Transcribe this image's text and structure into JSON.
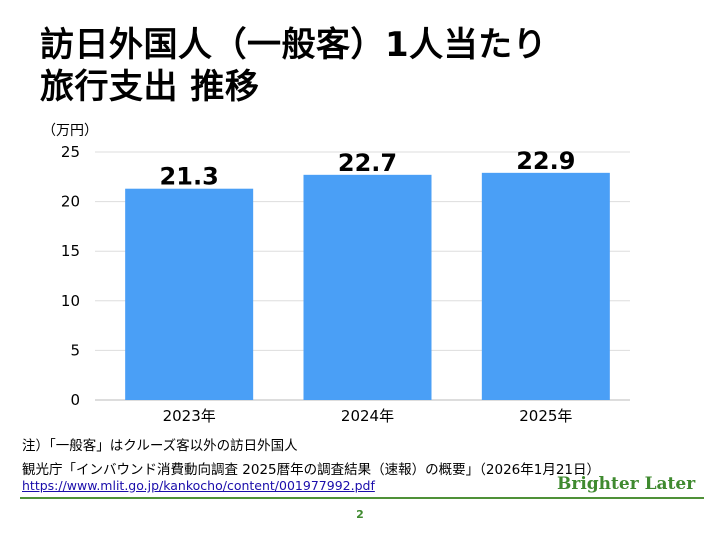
{
  "title_line1": "訪日外国人（一般客）1人当たり",
  "title_line2": "旅行支出 推移",
  "chart_data": {
    "type": "bar",
    "title": "訪日外国人（一般客）1人当たり 旅行支出 推移",
    "ylabel": "（万円）",
    "xlabel": "",
    "categories": [
      "2023年",
      "2024年",
      "2025年"
    ],
    "values": [
      21.3,
      22.7,
      22.9
    ],
    "data_labels": [
      "21.3",
      "22.7",
      "22.9"
    ],
    "ylim": [
      0,
      25
    ],
    "yticks": [
      "0",
      "5",
      "10",
      "15",
      "20",
      "25"
    ],
    "grid": true,
    "bar_color": "#4a9ff6"
  },
  "notes": {
    "note1": "注）「一般客」はクルーズ客以外の訪日外国人",
    "source": "観光庁「インバウンド消費動向調査 2025暦年の調査結果（速報）の概要」（2026年1月21日）",
    "link": "https://www.mlit.go.jp/kankocho/content/001977992.pdf"
  },
  "brand": "Brighter Later",
  "page_number": "2"
}
